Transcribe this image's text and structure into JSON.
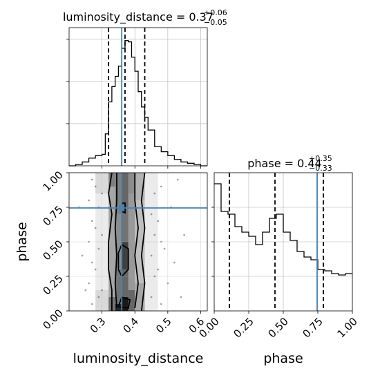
{
  "chart_data": {
    "type": "corner",
    "colors": {
      "truth": "#4682b4",
      "hist": "#000000",
      "grid": "#b0b0b0",
      "sample": "#000000"
    },
    "params": [
      {
        "name": "luminosity_distance",
        "range": [
          0.2,
          0.62
        ],
        "ticks": [
          0.3,
          0.4,
          0.5,
          0.6
        ],
        "truth": 0.36,
        "quantiles": [
          0.32,
          0.37,
          0.43
        ],
        "title": {
          "main": "luminosity_distance = 0.37",
          "sup": "+0.06",
          "sub": "−0.05"
        },
        "xlabel": "luminosity_distance",
        "hist_edges": [
          0.2,
          0.22,
          0.24,
          0.26,
          0.28,
          0.3,
          0.31,
          0.32,
          0.33,
          0.34,
          0.35,
          0.36,
          0.37,
          0.38,
          0.39,
          0.4,
          0.41,
          0.42,
          0.43,
          0.44,
          0.46,
          0.48,
          0.5,
          0.52,
          0.54,
          0.56,
          0.58,
          0.6,
          0.62
        ],
        "hist_values": [
          0.0,
          0.01,
          0.03,
          0.06,
          0.08,
          0.09,
          0.25,
          0.5,
          0.62,
          0.7,
          0.78,
          0.92,
          0.98,
          0.97,
          0.85,
          0.74,
          0.58,
          0.46,
          0.38,
          0.28,
          0.15,
          0.11,
          0.08,
          0.05,
          0.03,
          0.02,
          0.01,
          0.0
        ]
      },
      {
        "name": "phase",
        "range": [
          0.0,
          1.0
        ],
        "ticks": [
          0.0,
          0.25,
          0.5,
          0.75,
          1.0
        ],
        "truth": 0.745,
        "quantiles": [
          0.11,
          0.44,
          0.79
        ],
        "title": {
          "main": "phase = 0.44",
          "sup": "+0.35",
          "sub": "−0.33"
        },
        "xlabel": "phase",
        "ylabel": "phase",
        "hist_edges": [
          0.0,
          0.05,
          0.1,
          0.15,
          0.2,
          0.25,
          0.3,
          0.35,
          0.4,
          0.45,
          0.5,
          0.55,
          0.6,
          0.65,
          0.7,
          0.75,
          0.8,
          0.85,
          0.9,
          0.95,
          1.0
        ],
        "hist_values": [
          0.92,
          0.72,
          0.7,
          0.61,
          0.57,
          0.54,
          0.48,
          0.57,
          0.67,
          0.7,
          0.57,
          0.51,
          0.43,
          0.39,
          0.37,
          0.3,
          0.29,
          0.27,
          0.26,
          0.27
        ]
      }
    ],
    "tick_labels": {
      "ld": [
        "0.3",
        "0.4",
        "0.5",
        "0.6"
      ],
      "phase_x": [
        "0.00",
        "0.25",
        "0.50",
        "0.75",
        "1.00"
      ],
      "phase_y": [
        "0.00",
        "0.25",
        "0.50",
        "0.75",
        "1.00"
      ]
    },
    "density_cells": [
      [
        0.28,
        0.32,
        0.0,
        0.15,
        0.15
      ],
      [
        0.28,
        0.32,
        0.15,
        0.85,
        0.08
      ],
      [
        0.28,
        0.32,
        0.85,
        1.0,
        0.15
      ],
      [
        0.32,
        0.34,
        0.0,
        0.1,
        0.55
      ],
      [
        0.32,
        0.34,
        0.1,
        0.9,
        0.35
      ],
      [
        0.32,
        0.34,
        0.9,
        1.0,
        0.5
      ],
      [
        0.34,
        0.36,
        0.0,
        0.05,
        0.85
      ],
      [
        0.34,
        0.36,
        0.05,
        0.3,
        0.55
      ],
      [
        0.34,
        0.36,
        0.3,
        0.7,
        0.45
      ],
      [
        0.34,
        0.36,
        0.7,
        1.0,
        0.5
      ],
      [
        0.36,
        0.38,
        0.0,
        0.1,
        0.9
      ],
      [
        0.36,
        0.38,
        0.1,
        0.3,
        0.6
      ],
      [
        0.36,
        0.38,
        0.3,
        0.5,
        0.75
      ],
      [
        0.36,
        0.38,
        0.5,
        0.75,
        0.55
      ],
      [
        0.36,
        0.38,
        0.75,
        1.0,
        0.6
      ],
      [
        0.38,
        0.4,
        0.0,
        0.15,
        0.6
      ],
      [
        0.38,
        0.4,
        0.15,
        0.85,
        0.4
      ],
      [
        0.38,
        0.4,
        0.85,
        1.0,
        0.45
      ],
      [
        0.4,
        0.43,
        0.0,
        0.2,
        0.35
      ],
      [
        0.4,
        0.43,
        0.2,
        0.8,
        0.25
      ],
      [
        0.4,
        0.43,
        0.8,
        1.0,
        0.3
      ],
      [
        0.43,
        0.47,
        0.0,
        1.0,
        0.08
      ]
    ],
    "contours": [
      [
        [
          0.33,
          0.0
        ],
        [
          0.33,
          0.15
        ],
        [
          0.32,
          0.3
        ],
        [
          0.32,
          0.5
        ],
        [
          0.33,
          0.7
        ],
        [
          0.32,
          0.85
        ],
        [
          0.33,
          1.0
        ]
      ],
      [
        [
          0.42,
          0.0
        ],
        [
          0.43,
          0.2
        ],
        [
          0.42,
          0.4
        ],
        [
          0.43,
          0.6
        ],
        [
          0.42,
          0.8
        ],
        [
          0.43,
          1.0
        ]
      ],
      [
        [
          0.345,
          0.02
        ],
        [
          0.34,
          0.2
        ],
        [
          0.345,
          0.4
        ],
        [
          0.34,
          0.6
        ],
        [
          0.345,
          0.8
        ],
        [
          0.345,
          1.0
        ]
      ],
      [
        [
          0.4,
          0.02
        ],
        [
          0.41,
          0.2
        ],
        [
          0.4,
          0.4
        ],
        [
          0.41,
          0.6
        ],
        [
          0.4,
          0.8
        ],
        [
          0.4,
          1.0
        ]
      ],
      [
        [
          0.35,
          0.3
        ],
        [
          0.36,
          0.25
        ],
        [
          0.38,
          0.3
        ],
        [
          0.38,
          0.45
        ],
        [
          0.36,
          0.48
        ],
        [
          0.35,
          0.42
        ],
        [
          0.35,
          0.3
        ]
      ],
      [
        [
          0.35,
          0.03
        ],
        [
          0.38,
          0.02
        ],
        [
          0.385,
          0.08
        ],
        [
          0.36,
          0.1
        ],
        [
          0.35,
          0.03
        ]
      ],
      [
        [
          0.36,
          0.72
        ],
        [
          0.37,
          0.71
        ],
        [
          0.37,
          0.78
        ],
        [
          0.36,
          0.78
        ],
        [
          0.36,
          0.72
        ]
      ]
    ],
    "scatter": [
      [
        0.27,
        0.05
      ],
      [
        0.26,
        0.2
      ],
      [
        0.27,
        0.35
      ],
      [
        0.26,
        0.5
      ],
      [
        0.27,
        0.65
      ],
      [
        0.26,
        0.8
      ],
      [
        0.27,
        0.95
      ],
      [
        0.29,
        0.1
      ],
      [
        0.28,
        0.3
      ],
      [
        0.29,
        0.45
      ],
      [
        0.28,
        0.6
      ],
      [
        0.29,
        0.75
      ],
      [
        0.28,
        0.9
      ],
      [
        0.3,
        0.15
      ],
      [
        0.3,
        0.55
      ],
      [
        0.3,
        0.85
      ],
      [
        0.45,
        0.1
      ],
      [
        0.46,
        0.25
      ],
      [
        0.45,
        0.4
      ],
      [
        0.46,
        0.55
      ],
      [
        0.45,
        0.7
      ],
      [
        0.46,
        0.85
      ],
      [
        0.48,
        0.05
      ],
      [
        0.47,
        0.3
      ],
      [
        0.48,
        0.5
      ],
      [
        0.47,
        0.65
      ],
      [
        0.48,
        0.9
      ],
      [
        0.5,
        0.2
      ],
      [
        0.49,
        0.45
      ],
      [
        0.51,
        0.75
      ],
      [
        0.52,
        0.35
      ],
      [
        0.53,
        0.95
      ],
      [
        0.55,
        0.55
      ],
      [
        0.54,
        0.1
      ],
      [
        0.24,
        0.4
      ],
      [
        0.23,
        0.75
      ],
      [
        0.25,
        0.15
      ]
    ]
  }
}
